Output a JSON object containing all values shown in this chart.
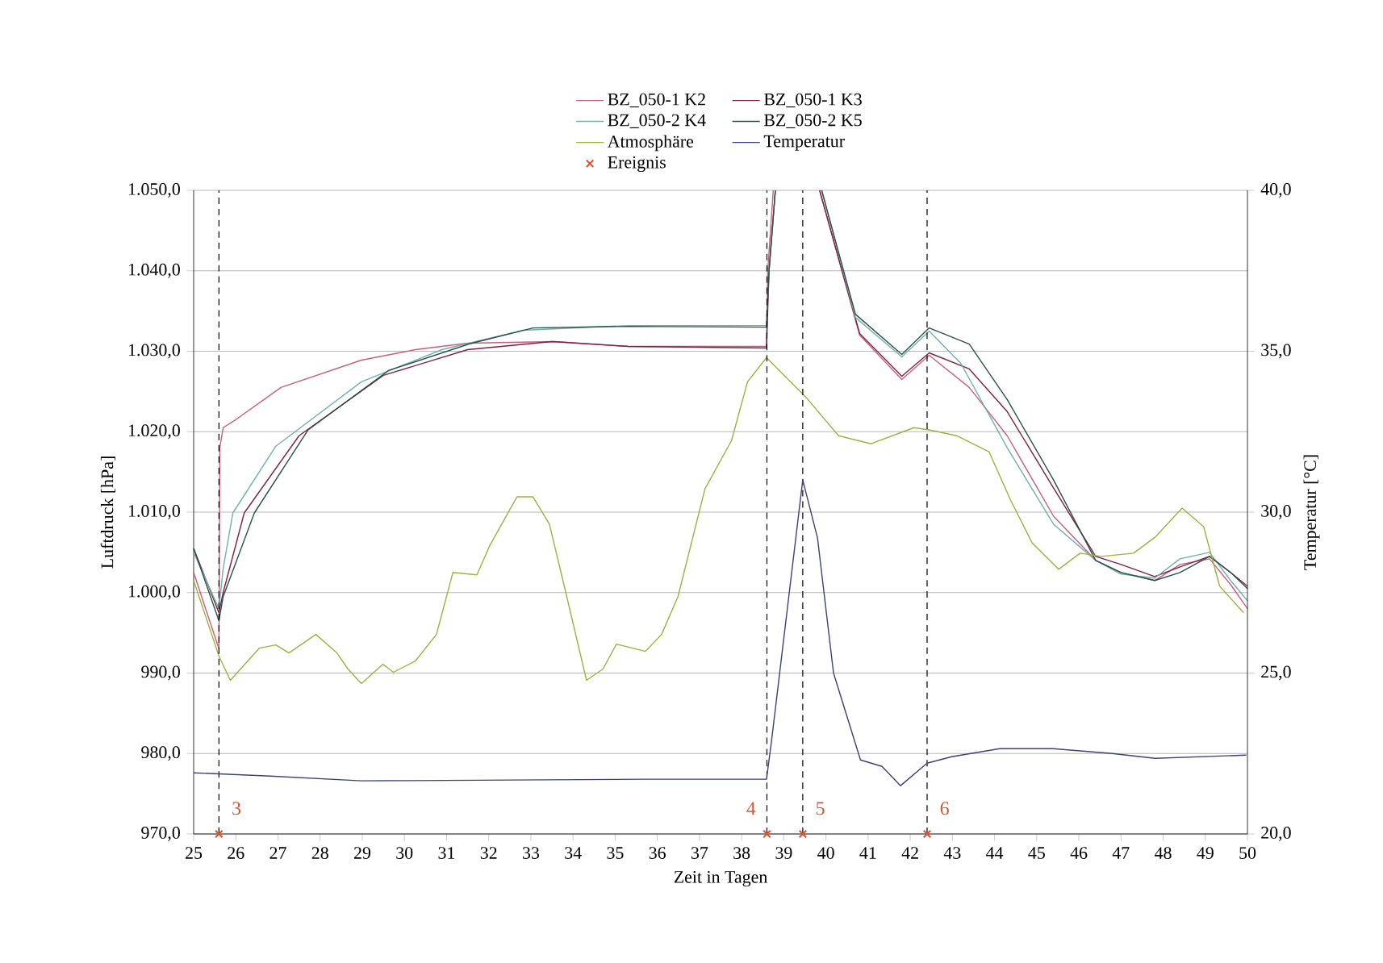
{
  "chart_data": {
    "type": "line",
    "xlabel": "Zeit in Tagen",
    "ylabel": "Luftdruck [hPa]",
    "y2label": "Temperatur [°C]",
    "xlim": [
      25,
      50
    ],
    "xticks": [
      25,
      26,
      27,
      28,
      29,
      30,
      31,
      32,
      33,
      34,
      35,
      36,
      37,
      38,
      39,
      40,
      41,
      42,
      43,
      44,
      45,
      46,
      47,
      48,
      49,
      50
    ],
    "ylim": [
      970,
      1050
    ],
    "yticks": [
      {
        "value": 970,
        "label": "970,0"
      },
      {
        "value": 980,
        "label": "980,0"
      },
      {
        "value": 990,
        "label": "990,0"
      },
      {
        "value": 1000,
        "label": "1.000,0"
      },
      {
        "value": 1010,
        "label": "1.010,0"
      },
      {
        "value": 1020,
        "label": "1.020,0"
      },
      {
        "value": 1030,
        "label": "1.030,0"
      },
      {
        "value": 1040,
        "label": "1.040,0"
      },
      {
        "value": 1050,
        "label": "1.050,0"
      }
    ],
    "y2lim": [
      20,
      40
    ],
    "y2ticks": [
      {
        "value": 20,
        "label": "20,0"
      },
      {
        "value": 25,
        "label": "25,0"
      },
      {
        "value": 30,
        "label": "30,0"
      },
      {
        "value": 35,
        "label": "35,0"
      },
      {
        "value": 40,
        "label": "40,0"
      }
    ],
    "grid": "y",
    "legend": "top",
    "series": [
      {
        "name": "BZ_050-1 K2",
        "color": "#c8607a",
        "x": [
          25.0,
          25.6,
          25.62,
          25.7,
          26.0,
          27.07,
          28.98,
          30.26,
          31.5,
          33.57,
          35.34,
          38.59,
          38.62,
          38.75,
          38.8,
          39.85,
          40.8,
          41.8,
          42.45,
          43.4,
          44.3,
          45.4,
          46.4,
          47.0,
          47.8,
          48.4,
          49.1,
          49.6,
          50.0
        ],
        "values": [
          1002.5,
          993,
          1018,
          1020.5,
          1021.5,
          1025.5,
          1028.9,
          1030.2,
          1031,
          1031.2,
          1030.6,
          1030.6,
          1040,
          1050,
          null,
          1050,
          1032,
          1026.5,
          1029.5,
          1025.5,
          1019.5,
          1009.5,
          1004,
          1002.5,
          1001.5,
          1003.5,
          1004.2,
          1001,
          998
        ]
      },
      {
        "name": "BZ_050-1 K3",
        "color": "#802040",
        "x": [
          25.0,
          25.6,
          25.7,
          26.2,
          27.5,
          29.5,
          31.5,
          33.5,
          35.3,
          38.59,
          38.65,
          38.8,
          38.85,
          39.85,
          40.8,
          41.8,
          42.45,
          43.4,
          44.3,
          45.4,
          46.4,
          47.0,
          47.8,
          48.4,
          49.1,
          49.6,
          50.0
        ],
        "values": [
          1005.5,
          997.5,
          1000,
          1009.9,
          1019.5,
          1027,
          1030.2,
          1031.2,
          1030.6,
          1030.4,
          1040,
          1050,
          null,
          1050,
          1032.2,
          1026.9,
          1029.8,
          1027.8,
          1022.5,
          1013,
          1004.5,
          1003.5,
          1002,
          1003.2,
          1004.5,
          1002.5,
          1000.8
        ]
      },
      {
        "name": "BZ_050-2 K4",
        "color": "#70b0b0",
        "x": [
          25.0,
          25.6,
          25.7,
          25.93,
          26.95,
          28.98,
          30.89,
          32.8,
          35.34,
          38.59,
          38.65,
          38.8,
          38.85,
          39.9,
          40.7,
          41.8,
          42.45,
          43.2,
          44.3,
          45.4,
          46.4,
          47.0,
          47.8,
          48.4,
          49.1,
          49.6,
          50.0
        ],
        "values": [
          1005,
          998,
          1003,
          1009.9,
          1018.2,
          1026.2,
          1030.2,
          1032.6,
          1033.2,
          1033.2,
          1040,
          1050,
          null,
          1050,
          1034.2,
          1029.3,
          1032.5,
          1028.5,
          1018,
          1008.5,
          1004,
          1002.3,
          1001.8,
          1004.2,
          1005,
          1001.5,
          999
        ]
      },
      {
        "name": "BZ_050-2 K5",
        "color": "#2a5048",
        "x": [
          25.0,
          25.6,
          25.7,
          26.44,
          27.71,
          29.62,
          31.53,
          33.05,
          35.3,
          38.59,
          38.65,
          38.8,
          38.85,
          39.9,
          40.7,
          41.8,
          42.45,
          43.4,
          44.3,
          45.4,
          46.4,
          47.0,
          47.8,
          48.4,
          49.1,
          49.6,
          50.0
        ],
        "values": [
          1005.5,
          996.5,
          999.5,
          1009.9,
          1020.2,
          1027.6,
          1030.9,
          1032.9,
          1033.1,
          1033.0,
          1040,
          1050,
          null,
          1050,
          1034.6,
          1029.6,
          1032.9,
          1030.9,
          1024,
          1014,
          1004,
          1002.5,
          1001.5,
          1002.5,
          1004.5,
          1002.5,
          1000.5
        ]
      },
      {
        "name": "Atmosphäre",
        "color": "#a0b040",
        "x": [
          25.0,
          25.6,
          25.87,
          26.56,
          26.95,
          27.26,
          27.9,
          28.4,
          28.66,
          28.98,
          29.49,
          29.74,
          30.26,
          30.76,
          31.15,
          31.72,
          32.03,
          32.67,
          33.05,
          33.44,
          33.82,
          34.32,
          34.71,
          35.03,
          35.72,
          36.1,
          36.49,
          37.13,
          37.76,
          38.14,
          38.59,
          39.16,
          39.54,
          40.3,
          41.07,
          42.09,
          42.47,
          43.1,
          43.87,
          44.38,
          44.89,
          45.52,
          46.03,
          46.54,
          47.3,
          47.81,
          48.45,
          48.96,
          49.34,
          49.91
        ],
        "values": [
          1001.5,
          992.1,
          989.1,
          993.1,
          993.5,
          992.5,
          994.8,
          992.5,
          990.5,
          988.7,
          991.1,
          990.1,
          991.5,
          994.8,
          1002.5,
          1002.2,
          1005.9,
          1011.9,
          1011.9,
          1008.5,
          1000.2,
          989.1,
          990.5,
          993.6,
          992.7,
          994.8,
          999.5,
          1012.9,
          1018.9,
          1026.2,
          1029.2,
          1026.2,
          1024.2,
          1019.5,
          1018.5,
          1020.5,
          1020.2,
          1019.5,
          1017.5,
          1011.5,
          1006.2,
          1002.9,
          1004.9,
          1004.5,
          1004.9,
          1006.9,
          1010.5,
          1008.2,
          1000.8,
          997.5
        ]
      },
      {
        "name": "Temperatur",
        "color": "#404078",
        "axis": "y2",
        "x": [
          25.0,
          26.82,
          28.98,
          35.72,
          38.59,
          38.71,
          39.45,
          39.8,
          40.18,
          40.82,
          41.33,
          41.77,
          42.4,
          42.98,
          44.12,
          45.39,
          46.79,
          47.81,
          49.97
        ],
        "values": [
          21.9,
          21.8,
          21.65,
          21.7,
          21.7,
          22.9,
          31.0,
          29.2,
          25.0,
          22.3,
          22.1,
          21.5,
          22.2,
          22.4,
          22.65,
          22.65,
          22.5,
          22.35,
          22.45
        ]
      },
      {
        "name": "Ereignis",
        "type": "scatter",
        "marker": "cross",
        "color": "#e0502a",
        "x": [
          25.6,
          38.6,
          39.45,
          42.4
        ],
        "values": [
          970,
          970,
          970,
          970
        ]
      }
    ],
    "ref_lines": [
      {
        "axis": "x",
        "value": 25.6,
        "color": "#000000",
        "line_style": "dashed"
      },
      {
        "axis": "x",
        "value": 38.6,
        "color": "#000000",
        "line_style": "dashed"
      },
      {
        "axis": "x",
        "value": 39.45,
        "color": "#000000",
        "line_style": "dashed"
      },
      {
        "axis": "x",
        "value": 42.4,
        "color": "#000000",
        "line_style": "dashed"
      }
    ],
    "annotations": [
      {
        "text": "3",
        "x": 25.6,
        "y": 970
      },
      {
        "text": "4",
        "x": 38.6,
        "y": 970
      },
      {
        "text": "5",
        "x": 39.45,
        "y": 970
      },
      {
        "text": "6",
        "x": 42.4,
        "y": 970
      }
    ]
  }
}
